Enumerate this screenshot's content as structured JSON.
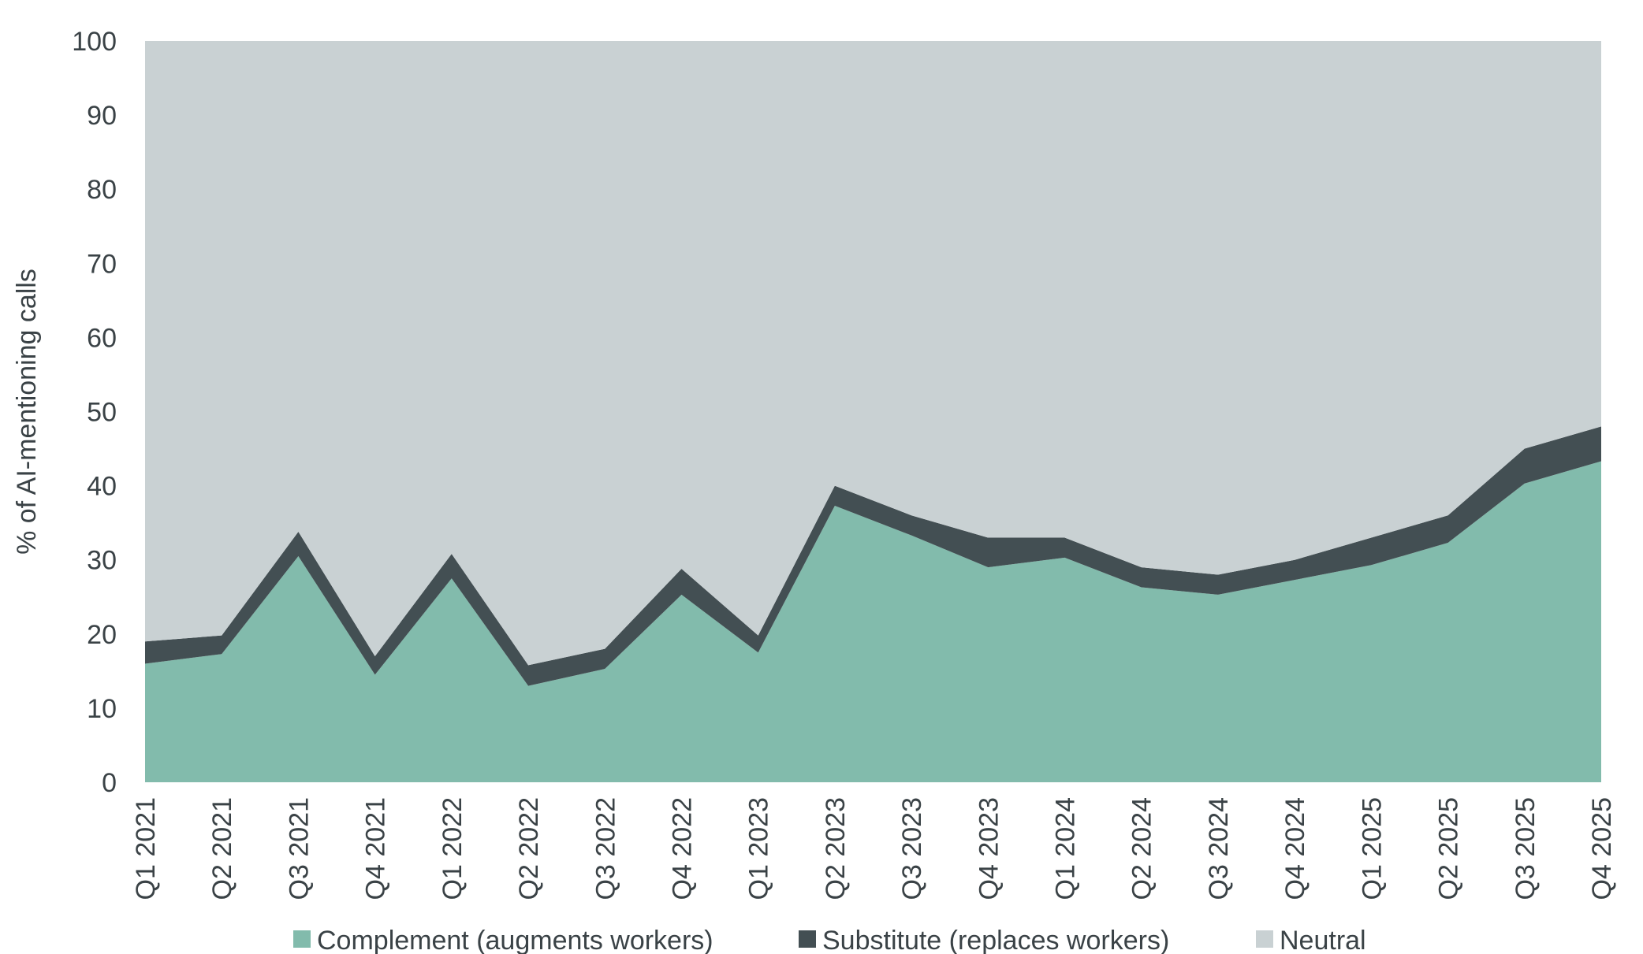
{
  "chart_data": {
    "type": "area",
    "stacked": true,
    "categories": [
      "Q1 2021",
      "Q2 2021",
      "Q3 2021",
      "Q4 2021",
      "Q1 2022",
      "Q2 2022",
      "Q3 2022",
      "Q4 2022",
      "Q1 2023",
      "Q2 2023",
      "Q3 2023",
      "Q4 2023",
      "Q1 2024",
      "Q2 2024",
      "Q3 2024",
      "Q4 2024",
      "Q1 2025",
      "Q2 2025",
      "Q3 2025",
      "Q4 2025"
    ],
    "series": [
      {
        "name": "Complement (augments workers)",
        "color": "#82bbac",
        "values": [
          16,
          17.3,
          30.5,
          14.5,
          27.5,
          13,
          15.3,
          25.3,
          17.5,
          37.3,
          33.3,
          29,
          30.3,
          26.3,
          25.3,
          27.3,
          29.3,
          32.3,
          40.3,
          43.3
        ]
      },
      {
        "name": "Substitute (replaces workers)",
        "color": "#434f53",
        "values": [
          3,
          2.5,
          3.3,
          2.5,
          3.3,
          2.8,
          2.7,
          3.5,
          2.3,
          2.7,
          2.7,
          4,
          2.7,
          2.7,
          2.7,
          2.7,
          3.7,
          3.7,
          4.7,
          4.7
        ]
      },
      {
        "name": "Neutral",
        "color": "#c9d1d3",
        "values": [
          81,
          80.2,
          66.2,
          83,
          69.2,
          84.2,
          82,
          71.2,
          80.2,
          60,
          64,
          67,
          67,
          71,
          72,
          70,
          67,
          64,
          55,
          52
        ]
      }
    ],
    "ylabel": "% of AI-mentioning calls",
    "xlabel": "",
    "ylim": [
      0,
      100
    ],
    "yticks": [
      "0",
      "10",
      "20",
      "30",
      "40",
      "50",
      "60",
      "70",
      "80",
      "90",
      "100"
    ],
    "grid": false,
    "legend_position": "bottom"
  }
}
